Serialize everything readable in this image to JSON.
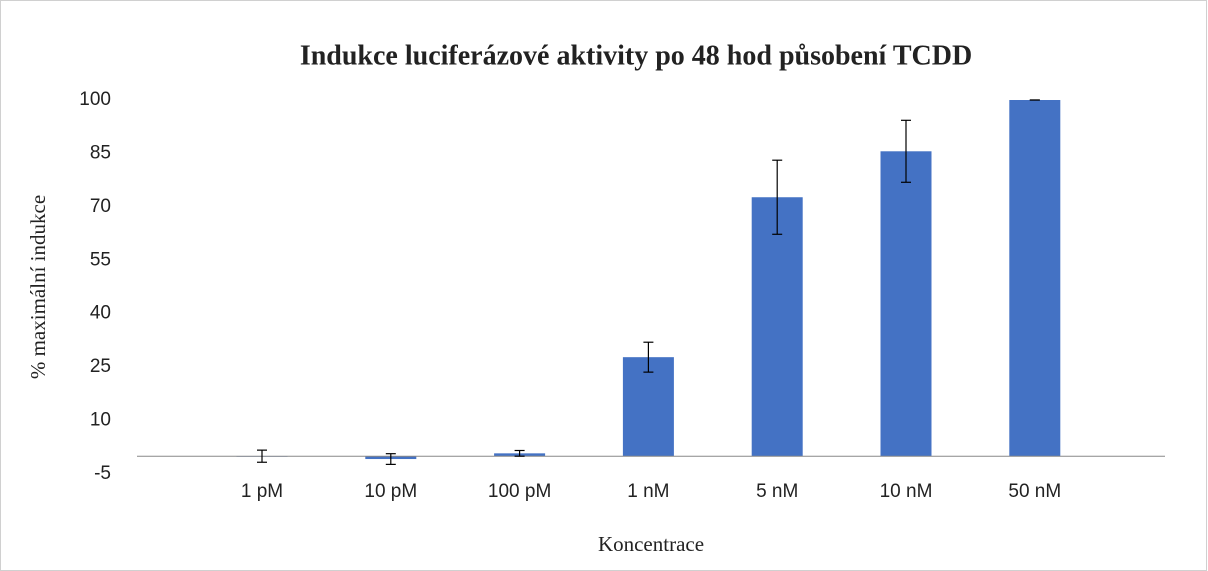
{
  "chart_data": {
    "type": "bar",
    "title": "Indukce luciferázové aktivity po 48 hod působení TCDD",
    "x_label": "Koncentrace",
    "y_label": "% maximální indukce",
    "categories": [
      "1 pM",
      "10 pM",
      "100 pM",
      "1 nM",
      "5 nM",
      "10 nM",
      "50  nM"
    ],
    "values": [
      0,
      -0.8,
      0.8,
      27.8,
      72.7,
      85.6,
      100
    ],
    "errors": [
      1.7,
      1.5,
      0.8,
      4.2,
      10.4,
      8.7,
      0
    ],
    "color": "#4472c4",
    "ylim": [
      -5,
      100
    ],
    "yticks": [
      -5,
      10,
      25,
      40,
      55,
      70,
      85,
      100
    ],
    "grid": false
  }
}
